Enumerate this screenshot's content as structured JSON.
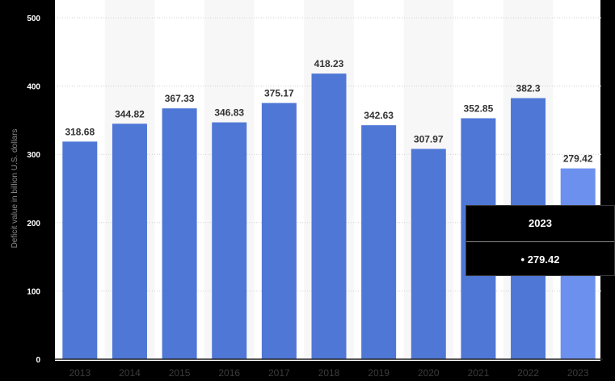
{
  "chart_data": {
    "type": "bar",
    "ylabel": "Deficit value in billion U.S. dollars",
    "xlabel": "",
    "categories": [
      "2013",
      "2014",
      "2015",
      "2016",
      "2017",
      "2018",
      "2019",
      "2020",
      "2021",
      "2022",
      "2023"
    ],
    "values": [
      318.68,
      344.82,
      367.33,
      346.83,
      375.17,
      418.23,
      342.63,
      307.97,
      352.85,
      382.3,
      279.42
    ],
    "value_labels": [
      "318.68",
      "344.82",
      "367.33",
      "346.83",
      "375.17",
      "418.23",
      "342.63",
      "307.97",
      "352.85",
      "382.3",
      "279.42"
    ],
    "yticks": [
      "0",
      "100",
      "200",
      "300",
      "400",
      "500"
    ],
    "ylim": [
      0,
      500
    ],
    "grid": true,
    "bar_color": "#4f77d6",
    "highlight_color": "#6c90ee",
    "highlight_index": 10
  },
  "tooltip": {
    "title": "2023",
    "value": "• 279.42"
  }
}
